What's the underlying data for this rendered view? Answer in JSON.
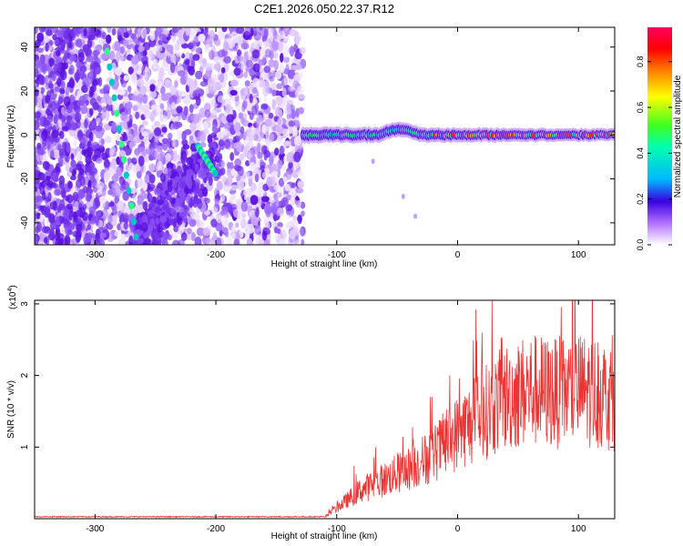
{
  "title": "C2E1.2026.050.22.37.R12",
  "chart_data": [
    {
      "type": "heatmap",
      "xlabel": "Height of straight line (km)",
      "ylabel": "Frequency (Hz)",
      "xlim": [
        -350,
        130
      ],
      "ylim": [
        -50,
        49
      ],
      "x_ticks": [
        -300,
        -200,
        -100,
        0,
        100
      ],
      "y_ticks": [
        -40,
        -20,
        0,
        20,
        40
      ],
      "colorbar": {
        "label": "Normalized spectral amplitude",
        "range": [
          0,
          0.95
        ],
        "ticks": [
          0.0,
          0.2,
          0.4,
          0.6,
          0.8
        ]
      },
      "features": [
        {
          "name": "noise region",
          "x_range": [
            -350,
            -128
          ]
        },
        {
          "name": "signal band near 0 Hz",
          "x_range": [
            -128,
            130
          ],
          "frequency": 0
        },
        {
          "name": "diagonal streak",
          "points": [
            [
              -290,
              38
            ],
            [
              -265,
              -50
            ]
          ]
        },
        {
          "name": "diagonal streak",
          "points": [
            [
              -215,
              -5
            ],
            [
              -200,
              -18
            ]
          ]
        }
      ]
    },
    {
      "type": "line",
      "xlabel": "Height of straight line (km)",
      "ylabel": "SNR (10 * v/v)",
      "scale_label": "(x10",
      "scale_exp": "4",
      "scale_close": ")",
      "xlim": [
        -350,
        130
      ],
      "ylim": [
        0,
        3.05
      ],
      "x_ticks": [
        -300,
        -200,
        -100,
        0,
        100
      ],
      "y_ticks": [
        1,
        2,
        3
      ],
      "color": "#ee3333",
      "series": [
        {
          "name": "SNR",
          "x": [
            -350,
            -110,
            -100,
            -80,
            -60,
            -40,
            -20,
            0,
            20,
            40,
            60,
            80,
            100,
            120,
            130
          ],
          "values": [
            0.02,
            0.02,
            0.15,
            0.4,
            0.55,
            0.7,
            0.9,
            1.2,
            1.45,
            1.7,
            1.8,
            1.75,
            1.8,
            1.75,
            1.7
          ]
        }
      ]
    }
  ]
}
